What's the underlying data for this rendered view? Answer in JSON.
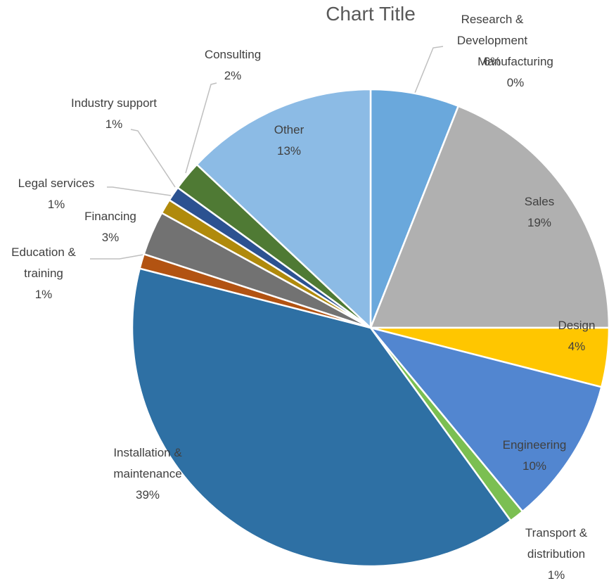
{
  "chart_data": {
    "type": "pie",
    "title": "Chart Title",
    "categories": [
      "Research & Development",
      "Manufacturing",
      "Sales",
      "Design",
      "Engineering",
      "Transport & distribution",
      "Installation & maintenance",
      "Education & training",
      "Financing",
      "Legal services",
      "Industry support",
      "Consulting",
      "Other"
    ],
    "values": [
      6,
      0,
      19,
      4,
      10,
      1,
      39,
      1,
      3,
      1,
      1,
      2,
      13
    ],
    "value_labels": [
      "6%",
      "0%",
      "19%",
      "4%",
      "10%",
      "1%",
      "39%",
      "1%",
      "3%",
      "1%",
      "1%",
      "2%",
      "13%"
    ],
    "colors": [
      "#6aa8dc",
      "#ed7d31",
      "#b0b0b0",
      "#ffc600",
      "#5286d0",
      "#7bbf52",
      "#2e70a4",
      "#b25312",
      "#727272",
      "#b08a0c",
      "#2c5291",
      "#4f7a34",
      "#8cbbe5"
    ]
  }
}
